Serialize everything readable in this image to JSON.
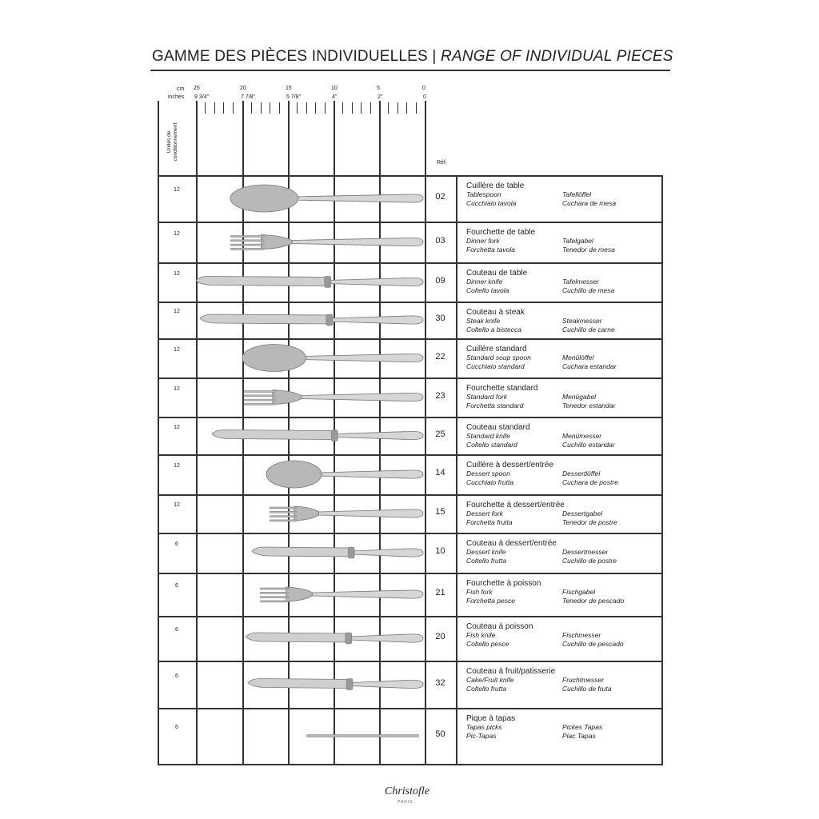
{
  "header": {
    "title_fr": "GAMME DES PIÈCES INDIVIDUELLES",
    "separator": "|",
    "title_en": "RANGE OF INDIVIDUAL PIECES"
  },
  "ruler": {
    "cm_label": "cm",
    "inches_label": "inches",
    "cm_ticks": [
      "25",
      "20",
      "15",
      "10",
      "5",
      "0"
    ],
    "inch_ticks": [
      "9 3/4\"",
      "7 7/8\"",
      "5 7/8\"",
      "4\"",
      "2\"",
      "0"
    ]
  },
  "columns": {
    "units": "Unités de conditionnement",
    "ref": "Réf."
  },
  "rows": [
    {
      "units": "12",
      "ref": "02",
      "icon": "spoon",
      "fr": "Cuillère de table",
      "en": "Tablespoon",
      "de": "Tafellöffel",
      "it": "Cucchiaio tavola",
      "es": "Cuchara de mesa"
    },
    {
      "units": "12",
      "ref": "03",
      "icon": "fork",
      "fr": "Fourchette de table",
      "en": "Dinner fork",
      "de": "Tafelgabel",
      "it": "Forchetta tavola",
      "es": "Tenedor de mesa"
    },
    {
      "units": "12",
      "ref": "09",
      "icon": "knife",
      "fr": "Couteau de table",
      "en": "Dinner knife",
      "de": "Tafelmesser",
      "it": "Coltello tavola",
      "es": "Cuchillo de mesa"
    },
    {
      "units": "12",
      "ref": "30",
      "icon": "knife",
      "fr": "Couteau à steak",
      "en": "Steak knife",
      "de": "Steakmesser",
      "it": "Coltello a bistecca",
      "es": "Cuchillo de carne"
    },
    {
      "units": "12",
      "ref": "22",
      "icon": "spoon",
      "fr": "Cuillère standard",
      "en": "Standard soup spoon",
      "de": "Menülöffel",
      "it": "Cucchiaio standard",
      "es": "Cuchara estandar"
    },
    {
      "units": "12",
      "ref": "23",
      "icon": "fork",
      "fr": "Fourchette standard",
      "en": "Standard fork",
      "de": "Menügabel",
      "it": "Forchetta standard",
      "es": "Tenedor estandar"
    },
    {
      "units": "12",
      "ref": "25",
      "icon": "knife",
      "fr": "Couteau standard",
      "en": "Standard knife",
      "de": "Menümesser",
      "it": "Coltello standard",
      "es": "Cuchillo estandar"
    },
    {
      "units": "12",
      "ref": "14",
      "icon": "spoon",
      "fr": "Cuillère à dessert/entrée",
      "en": "Dessert spoon",
      "de": "Dessertlöffel",
      "it": "Cucchiaio frutta",
      "es": "Cuchara de postre"
    },
    {
      "units": "12",
      "ref": "15",
      "icon": "fork",
      "fr": "Fourchette à dessert/entrée",
      "en": "Dessert fork",
      "de": "Dessertgabel",
      "it": "Forchetta frutta",
      "es": "Tenedor de postre"
    },
    {
      "units": "6",
      "ref": "10",
      "icon": "knife",
      "fr": "Couteau à dessert/entrée",
      "en": "Dessert knife",
      "de": "Dessertmesser",
      "it": "Coltello frutta",
      "es": "Cuchillo de postre"
    },
    {
      "units": "6",
      "ref": "21",
      "icon": "fork",
      "fr": "Fourchette à poisson",
      "en": "Fish fork",
      "de": "Fischgabel",
      "it": "Forchetta pesce",
      "es": "Tenedor de pescado"
    },
    {
      "units": "6",
      "ref": "20",
      "icon": "knife",
      "fr": "Couteau à poisson",
      "en": "Fish knife",
      "de": "Fischmesser",
      "it": "Coltello pesce",
      "es": "Cuchillo de pescado"
    },
    {
      "units": "6",
      "ref": "32",
      "icon": "knife",
      "fr": "Couteau à fruit/patisserie",
      "en": "Cake/Fruit knife",
      "de": "Fruchtmesser",
      "it": "Coltello frutta",
      "es": "Cuchillo de fruta"
    },
    {
      "units": "6",
      "ref": "50",
      "icon": "pick",
      "fr": "Pique à tapas",
      "en": "Tapas picks",
      "de": "Pickes Tapas",
      "it": "Pic-Tapas",
      "es": "Piac Tapas"
    }
  ],
  "footer": {
    "brand": "Christofle",
    "brand_sub": "PARIS"
  }
}
